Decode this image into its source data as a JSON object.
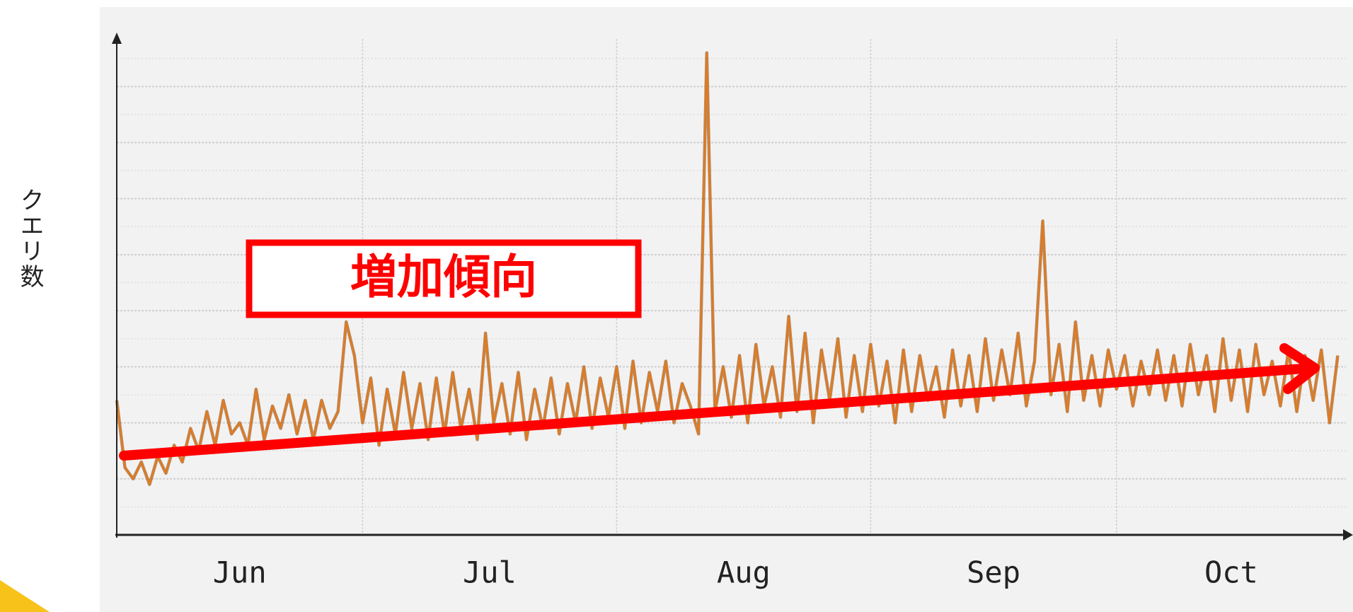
{
  "chart_data": {
    "type": "line",
    "y_label": "クエリ数",
    "annotation": "増加傾向",
    "xlim": [
      0,
      150
    ],
    "xticks": [
      {
        "value": 15,
        "label": "Jun"
      },
      {
        "value": 45.5,
        "label": "Jul"
      },
      {
        "value": 76.5,
        "label": "Aug"
      },
      {
        "value": 107,
        "label": "Sep"
      },
      {
        "value": 136,
        "label": "Oct"
      }
    ],
    "x_gridlines": [
      30,
      61,
      92,
      122
    ],
    "ylim": [
      0,
      8.85
    ],
    "yticks": [
      0,
      0.5,
      1,
      1.5,
      2,
      2.5,
      3,
      3.5,
      4,
      4.5,
      5,
      5.5,
      6,
      6.5,
      7,
      7.5,
      8,
      8.5
    ],
    "grid": true,
    "x": [
      0,
      1,
      2,
      3,
      4,
      5,
      6,
      7,
      8,
      9,
      10,
      11,
      12,
      13,
      14,
      15,
      16,
      17,
      18,
      19,
      20,
      21,
      22,
      23,
      24,
      25,
      26,
      27,
      28,
      29,
      30,
      31,
      32,
      33,
      34,
      35,
      36,
      37,
      38,
      39,
      40,
      41,
      42,
      43,
      44,
      45,
      46,
      47,
      48,
      49,
      50,
      51,
      52,
      53,
      54,
      55,
      56,
      57,
      58,
      59,
      60,
      61,
      62,
      63,
      64,
      65,
      66,
      67,
      68,
      69,
      70,
      71,
      72,
      73,
      74,
      75,
      76,
      77,
      78,
      79,
      80,
      81,
      82,
      83,
      84,
      85,
      86,
      87,
      88,
      89,
      90,
      91,
      92,
      93,
      94,
      95,
      96,
      97,
      98,
      99,
      100,
      101,
      102,
      103,
      104,
      105,
      106,
      107,
      108,
      109,
      110,
      111,
      112,
      113,
      114,
      115,
      116,
      117,
      118,
      119,
      120,
      121,
      122,
      123,
      124,
      125,
      126,
      127,
      128,
      129,
      130,
      131,
      132,
      133,
      134,
      135,
      136,
      137,
      138,
      139,
      140,
      141,
      142,
      143,
      144,
      145,
      146,
      147,
      148,
      149
    ],
    "series": [
      {
        "color": "#e07a1f",
        "values": [
          2.4,
          1.2,
          1.0,
          1.3,
          0.9,
          1.4,
          1.1,
          1.6,
          1.3,
          1.9,
          1.5,
          2.2,
          1.6,
          2.4,
          1.8,
          2.0,
          1.6,
          2.6,
          1.7,
          2.3,
          1.9,
          2.5,
          1.8,
          2.4,
          1.7,
          2.4,
          1.9,
          2.2,
          3.8,
          3.2,
          2.0,
          2.8,
          1.6,
          2.6,
          1.8,
          2.9,
          1.9,
          2.7,
          1.7,
          2.8,
          1.8,
          2.9,
          1.9,
          2.6,
          1.7,
          3.6,
          2.0,
          2.7,
          1.8,
          2.9,
          1.7,
          2.6,
          1.9,
          2.8,
          1.8,
          2.7,
          2.0,
          3.0,
          1.9,
          2.8,
          2.1,
          3.0,
          1.9,
          3.1,
          2.0,
          2.9,
          2.2,
          3.1,
          2.0,
          2.7,
          2.3,
          1.8,
          8.6,
          2.2,
          3.0,
          2.1,
          3.2,
          2.0,
          3.4,
          2.3,
          3.0,
          2.1,
          3.9,
          2.2,
          3.6,
          2.0,
          3.3,
          2.4,
          3.5,
          2.1,
          3.2,
          2.2,
          3.4,
          2.3,
          3.1,
          2.0,
          3.3,
          2.2,
          3.2,
          2.4,
          3.0,
          2.1,
          3.3,
          2.3,
          3.2,
          2.2,
          3.5,
          2.4,
          3.3,
          2.5,
          3.6,
          2.3,
          3.1,
          5.6,
          2.5,
          3.4,
          2.2,
          3.8,
          2.4,
          3.2,
          2.3,
          3.3,
          2.6,
          3.2,
          2.3,
          3.1,
          2.5,
          3.3,
          2.4,
          3.2,
          2.3,
          3.4,
          2.5,
          3.2,
          2.2,
          3.5,
          2.4,
          3.3,
          2.2,
          3.4,
          2.5,
          3.1,
          2.3,
          3.3,
          2.2,
          3.2,
          2.4,
          3.3,
          2.0,
          3.2
        ]
      }
    ]
  }
}
